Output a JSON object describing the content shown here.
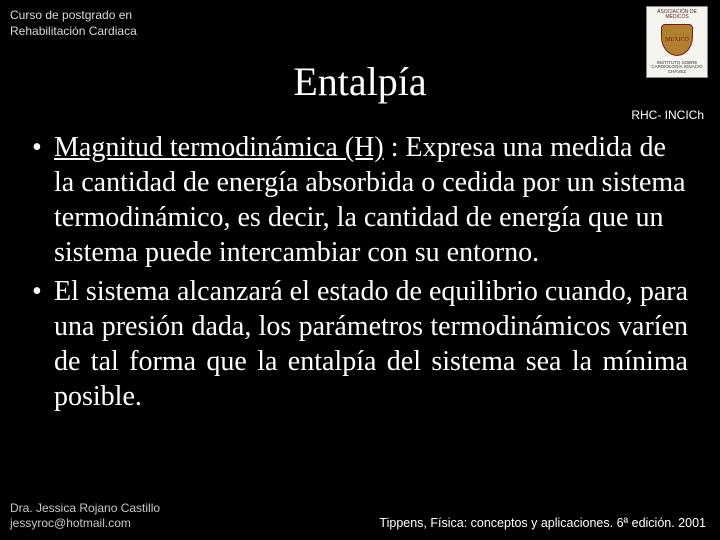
{
  "header": {
    "course_line1": "Curso de postgrado en",
    "course_line2": "Rehabilitación Cardiaca",
    "logo_top": "ASOCIACIÓN DE MÉDICOS",
    "logo_mid": "MEXICO",
    "logo_bot": "INSTITUTO SOBRE CARDIOLOGÍA IGNACIO CHÁVEZ"
  },
  "title": "Entalpía",
  "tag_right": "RHC- INCICh",
  "bullets": {
    "b1_prefix": "Magnitud termodinámica (H)",
    "b1_rest": " : Expresa una medida de la cantidad de energía absorbida o cedida por un sistema termodinámico, es decir, la cantidad de energía que un sistema puede intercambiar con su entorno.",
    "b2": "El sistema alcanzará el estado de equilibrio cuando, para una presión dada, los parámetros termodinámicos varíen de tal forma que la entalpía del sistema sea la mínima posible."
  },
  "footer": {
    "author": "Dra. Jessica Rojano Castillo",
    "email": "jessyroc@hotmail.com",
    "citation": "Tippens, Física: conceptos y aplicaciones. 6ª edición. 2001"
  },
  "colors": {
    "background": "#000000",
    "text": "#ffffff"
  },
  "typography": {
    "title_fontsize": 40,
    "body_fontsize": 28,
    "small_fontsize": 12
  }
}
